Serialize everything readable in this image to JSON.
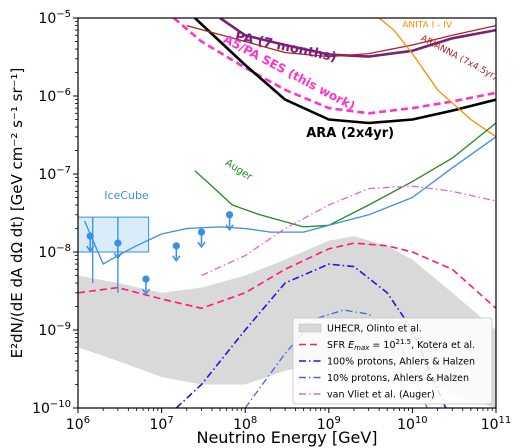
{
  "chart_data": {
    "type": "line",
    "xlabel": "Neutrino Energy [GeV]",
    "ylabel": "E²dN/(dE dA dΩ dt) [GeV cm⁻² s⁻¹ sr⁻¹]",
    "x_scale": "log",
    "y_scale": "log",
    "xlim": [
      1000000,
      100000000000
    ],
    "ylim": [
      1e-10,
      1e-05
    ],
    "x_ticks": [
      {
        "value": 1000000,
        "base": "10",
        "exp": "6"
      },
      {
        "value": 10000000,
        "base": "10",
        "exp": "7"
      },
      {
        "value": 100000000,
        "base": "10",
        "exp": "8"
      },
      {
        "value": 1000000000,
        "base": "10",
        "exp": "9"
      },
      {
        "value": 10000000000,
        "base": "10",
        "exp": "10"
      },
      {
        "value": 100000000000,
        "base": "10",
        "exp": "11"
      }
    ],
    "y_ticks": [
      {
        "value": 1e-10,
        "base": "10",
        "exp": "−10"
      },
      {
        "value": 1e-09,
        "base": "10",
        "exp": "−9"
      },
      {
        "value": 1e-08,
        "base": "10",
        "exp": "−8"
      },
      {
        "value": 1e-07,
        "base": "10",
        "exp": "−7"
      },
      {
        "value": 1e-06,
        "base": "10",
        "exp": "−6"
      },
      {
        "value": 1e-05,
        "base": "10",
        "exp": "−5"
      }
    ],
    "legend_position": "lower-right",
    "band": {
      "name": "UHECR, Olinto et al.",
      "color": "#d9d9d9",
      "upper": [
        [
          1000000.0,
          5e-09
        ],
        [
          3000000.0,
          4e-09
        ],
        [
          10000000.0,
          3e-09
        ],
        [
          30000000.0,
          3.5e-09
        ],
        [
          100000000.0,
          5e-09
        ],
        [
          300000000.0,
          8e-09
        ],
        [
          1000000000.0,
          1.4e-08
        ],
        [
          2000000000.0,
          1.6e-08
        ],
        [
          5000000000.0,
          1.2e-08
        ],
        [
          10000000000.0,
          8e-09
        ],
        [
          30000000000.0,
          3e-09
        ],
        [
          100000000000.0,
          1e-09
        ]
      ],
      "lower": [
        [
          1000000.0,
          6e-10
        ],
        [
          3000000.0,
          4e-10
        ],
        [
          10000000.0,
          2.5e-10
        ],
        [
          30000000.0,
          2e-10
        ],
        [
          100000000.0,
          2e-10
        ],
        [
          300000000.0,
          3e-10
        ],
        [
          1000000000.0,
          4e-10
        ],
        [
          3000000000.0,
          4e-10
        ],
        [
          10000000000.0,
          2.5e-10
        ],
        [
          30000000000.0,
          1.5e-10
        ],
        [
          100000000000.0,
          1e-10
        ]
      ]
    },
    "series": [
      {
        "label": "PA (7 months)",
        "color": "#7a1f7a",
        "style": "solid",
        "width": 2.6,
        "points": [
          [
            50000000.0,
            1e-05
          ],
          [
            100000000.0,
            6e-06
          ],
          [
            300000000.0,
            4.5e-06
          ],
          [
            1000000000.0,
            3.4e-06
          ],
          [
            3000000000.0,
            3.2e-06
          ],
          [
            10000000000.0,
            3.8e-06
          ],
          [
            30000000000.0,
            5.5e-06
          ],
          [
            100000000000.0,
            7e-06
          ]
        ]
      },
      {
        "label": "A5/PA SES (this work)",
        "color": "#ff33cc",
        "style": "dashed",
        "width": 2.6,
        "points": [
          [
            14000000.0,
            1e-05
          ],
          [
            30000000.0,
            5e-06
          ],
          [
            100000000.0,
            2.3e-06
          ],
          [
            300000000.0,
            1.2e-06
          ],
          [
            1000000000.0,
            7e-07
          ],
          [
            3000000000.0,
            6e-07
          ],
          [
            10000000000.0,
            7e-07
          ],
          [
            30000000000.0,
            8.5e-07
          ],
          [
            100000000000.0,
            1.1e-06
          ]
        ]
      },
      {
        "label": "ARA (2x4yr)",
        "color": "#000000",
        "style": "solid",
        "width": 2.6,
        "points": [
          [
            25000000.0,
            1e-05
          ],
          [
            50000000.0,
            5e-06
          ],
          [
            100000000.0,
            2.5e-06
          ],
          [
            300000000.0,
            9e-07
          ],
          [
            1000000000.0,
            5e-07
          ],
          [
            3000000000.0,
            4.5e-07
          ],
          [
            10000000000.0,
            5e-07
          ],
          [
            30000000000.0,
            6.5e-07
          ],
          [
            100000000000.0,
            9e-07
          ]
        ]
      },
      {
        "label": "ARIANNA (7x4.5yr)",
        "color": "#b22222",
        "style": "solid",
        "width": 1.3,
        "points": [
          [
            20000000.0,
            8e-06
          ],
          [
            100000000.0,
            5e-06
          ],
          [
            300000000.0,
            3.6e-06
          ],
          [
            1000000000.0,
            3.2e-06
          ],
          [
            3000000000.0,
            3.5e-06
          ],
          [
            10000000000.0,
            4.5e-06
          ],
          [
            30000000000.0,
            6e-06
          ],
          [
            100000000000.0,
            8e-06
          ]
        ]
      },
      {
        "label": "ANITA I - IV",
        "color": "#ff8c00",
        "style": "solid",
        "width": 1.3,
        "points": [
          [
            4000000000.0,
            1e-05
          ],
          [
            6000000000.0,
            7e-06
          ],
          [
            10000000000.0,
            3.5e-06
          ],
          [
            20000000000.0,
            1.2e-06
          ],
          [
            50000000000.0,
            5e-07
          ],
          [
            100000000000.0,
            3e-07
          ]
        ]
      },
      {
        "label": "Auger",
        "color": "#228b22",
        "style": "solid",
        "width": 1.3,
        "points": [
          [
            25000000.0,
            1.1e-07
          ],
          [
            40000000.0,
            7e-08
          ],
          [
            70000000.0,
            4e-08
          ],
          [
            150000000.0,
            3e-08
          ],
          [
            500000000.0,
            2.1e-08
          ],
          [
            1000000000.0,
            2.2e-08
          ],
          [
            3000000000.0,
            4e-08
          ],
          [
            10000000000.0,
            8e-08
          ],
          [
            30000000000.0,
            1.6e-07
          ],
          [
            100000000000.0,
            4.5e-07
          ]
        ]
      },
      {
        "label": "IceCube",
        "color": "#3a8ee6",
        "style": "solid",
        "width": 1.3,
        "points": [
          [
            1200000.0,
            2.5e-08
          ],
          [
            2000000.0,
            7e-09
          ],
          [
            3000000.0,
            9e-09
          ],
          [
            5000000.0,
            1.2e-08
          ],
          [
            10000000.0,
            1.7e-08
          ],
          [
            20000000.0,
            2e-08
          ],
          [
            50000000.0,
            2.1e-08
          ],
          [
            100000000.0,
            2e-08
          ],
          [
            200000000.0,
            1.8e-08
          ],
          [
            500000000.0,
            1.8e-08
          ],
          [
            1000000000.0,
            2.2e-08
          ],
          [
            3000000000.0,
            3e-08
          ],
          [
            10000000000.0,
            5e-08
          ],
          [
            30000000000.0,
            1.2e-07
          ],
          [
            100000000000.0,
            3e-07
          ]
        ]
      },
      {
        "label": "SFR Emax",
        "color": "#ff1a75",
        "style": "dashed",
        "width": 1.6,
        "points": [
          [
            1000000.0,
            3e-09
          ],
          [
            3000000.0,
            3.5e-09
          ],
          [
            10000000.0,
            2.5e-09
          ],
          [
            30000000.0,
            1.9e-09
          ],
          [
            100000000.0,
            3e-09
          ],
          [
            300000000.0,
            6e-09
          ],
          [
            1000000000.0,
            1.1e-08
          ],
          [
            2000000000.0,
            1.3e-08
          ],
          [
            5000000000.0,
            1.2e-08
          ],
          [
            10000000000.0,
            1e-08
          ],
          [
            30000000000.0,
            6e-09
          ],
          [
            100000000000.0,
            1.9e-09
          ]
        ]
      },
      {
        "label": "100% protons",
        "color": "#1a1ad4",
        "style": "dashdot",
        "width": 1.6,
        "points": [
          [
            15000000.0,
            1e-10
          ],
          [
            30000000.0,
            2e-10
          ],
          [
            100000000.0,
            1e-09
          ],
          [
            300000000.0,
            4e-09
          ],
          [
            1000000000.0,
            7e-09
          ],
          [
            2000000000.0,
            6.5e-09
          ],
          [
            5000000000.0,
            3e-09
          ],
          [
            10000000000.0,
            1e-09
          ],
          [
            25000000000.0,
            1e-10
          ]
        ]
      },
      {
        "label": "10% protons",
        "color": "#4466dd",
        "style": "dashdot",
        "width": 1.3,
        "points": [
          [
            100000000.0,
            1e-10
          ],
          [
            300000000.0,
            5e-10
          ],
          [
            700000000.0,
            1.4e-09
          ],
          [
            1500000000.0,
            1.8e-09
          ],
          [
            3000000000.0,
            1.6e-09
          ],
          [
            7000000000.0,
            7e-10
          ],
          [
            15000000000.0,
            1e-10
          ]
        ]
      },
      {
        "label": "van Vliet",
        "color": "#dd66dd",
        "style": "dashdot",
        "width": 1.3,
        "points": [
          [
            30000000.0,
            5e-09
          ],
          [
            100000000.0,
            9e-09
          ],
          [
            300000000.0,
            2e-08
          ],
          [
            1000000000.0,
            4e-08
          ],
          [
            3000000000.0,
            6.5e-08
          ],
          [
            10000000000.0,
            7e-08
          ],
          [
            30000000000.0,
            6e-08
          ],
          [
            100000000000.0,
            4.5e-08
          ]
        ]
      }
    ],
    "icecube_box": {
      "x": [
        1000000.0,
        7000000.0
      ],
      "y": [
        1e-08,
        2.8e-08
      ]
    },
    "upper_limits": [
      {
        "x": 1400000.0,
        "y": 1.6e-08
      },
      {
        "x": 3000000.0,
        "y": 1.3e-08
      },
      {
        "x": 6500000.0,
        "y": 4.5e-09
      },
      {
        "x": 15000000.0,
        "y": 1.2e-08
      },
      {
        "x": 30000000.0,
        "y": 1.8e-08
      },
      {
        "x": 65000000.0,
        "y": 3e-08
      }
    ],
    "error_bars": [
      {
        "x": 1500000.0,
        "ylo": 4e-09,
        "yhi": 2.8e-08
      },
      {
        "x": 3000000.0,
        "ylo": 3e-09,
        "yhi": 2.8e-08
      }
    ],
    "annotations": [
      {
        "text": "PA (7 months)",
        "x": 300000000.0,
        "y": 3.8e-06,
        "rotation": 12,
        "color": "#7a1f7a",
        "bold": true,
        "size": 13
      },
      {
        "text": "A5/PA SES (this work)",
        "x": 320000000.0,
        "y": 1.8e-06,
        "rotation": 28,
        "color": "#ff33cc",
        "bold": true,
        "size": 12
      },
      {
        "text": "ARA (2x4yr)",
        "x": 1800000000.0,
        "y": 3e-07,
        "rotation": 0,
        "color": "#000000",
        "bold": true,
        "size": 13
      },
      {
        "text": "ANITA I - IV",
        "x": 15000000000.0,
        "y": 7.5e-06,
        "rotation": 0,
        "color": "#ff8c00",
        "bold": false,
        "size": 9
      },
      {
        "text": "ARIANNA (7x4.5yr)",
        "x": 35000000000.0,
        "y": 2.9e-06,
        "rotation": 28,
        "color": "#b22222",
        "bold": false,
        "size": 9
      },
      {
        "text": "Auger",
        "x": 80000000.0,
        "y": 1.05e-07,
        "rotation": 33,
        "color": "#228b22",
        "bold": false,
        "size": 10
      },
      {
        "text": "IceCube",
        "x": 3800000.0,
        "y": 4.8e-08,
        "rotation": 0,
        "color": "#3a8ee6",
        "bold": false,
        "size": 11
      }
    ],
    "legend": [
      {
        "label": "UHECR, Olinto et al.",
        "kind": "patch",
        "color": "#d9d9d9"
      },
      {
        "label": "SFR",
        "sym": "E",
        "sub": "max",
        "eq": " = 10",
        "sup": "21.5",
        "tail": ", Kotera et al.",
        "kind": "line",
        "color": "#ff1a75",
        "style": "dashed"
      },
      {
        "label": "100% protons, Ahlers & Halzen",
        "kind": "line",
        "color": "#1a1ad4",
        "style": "dashdot"
      },
      {
        "label": "10% protons, Ahlers & Halzen",
        "kind": "line",
        "color": "#4466dd",
        "style": "dashdot"
      },
      {
        "label": "van Vliet et al. (Auger)",
        "kind": "line",
        "color": "#dd66dd",
        "style": "dashdot"
      }
    ]
  }
}
